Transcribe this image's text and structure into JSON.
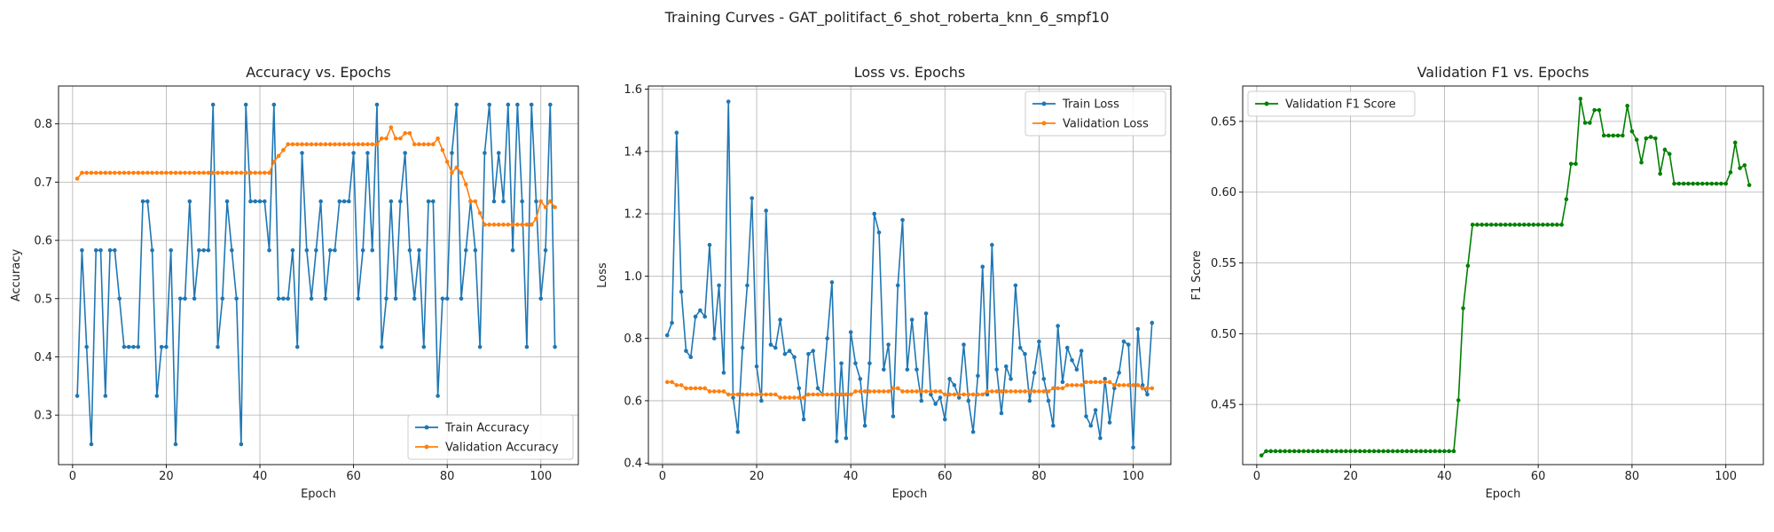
{
  "suptitle": "Training Curves - GAT_politifact_6_shot_roberta_knn_6_smpf10",
  "colors": {
    "train": "#1f77b4",
    "validation": "#ff7f0e",
    "f1": "#008000",
    "grid": "#b0b0b0",
    "axes": "#000000"
  },
  "chart_data": [
    {
      "type": "line",
      "title": "Accuracy vs. Epochs",
      "xlabel": "Epoch",
      "ylabel": "Accuracy",
      "xlim": [
        -3,
        108
      ],
      "ylim": [
        0.215,
        0.865
      ],
      "xticks": [
        0,
        20,
        40,
        60,
        80,
        100
      ],
      "yticks": [
        0.3,
        0.4,
        0.5,
        0.6,
        0.7,
        0.8
      ],
      "ytick_labels": [
        "0.3",
        "0.4",
        "0.5",
        "0.6",
        "0.7",
        "0.8"
      ],
      "grid": true,
      "legend_position": "lower-right",
      "series": [
        {
          "name": "Train Accuracy",
          "color": "#1f77b4",
          "values": [
            0.333,
            0.583,
            0.417,
            0.25,
            0.583,
            0.583,
            0.333,
            0.583,
            0.583,
            0.5,
            0.417,
            0.417,
            0.417,
            0.417,
            0.667,
            0.667,
            0.583,
            0.333,
            0.417,
            0.417,
            0.583,
            0.25,
            0.5,
            0.5,
            0.667,
            0.5,
            0.583,
            0.583,
            0.583,
            0.833,
            0.417,
            0.5,
            0.667,
            0.583,
            0.5,
            0.25,
            0.833,
            0.667,
            0.667,
            0.667,
            0.667,
            0.583,
            0.833,
            0.5,
            0.5,
            0.5,
            0.583,
            0.417,
            0.75,
            0.583,
            0.5,
            0.583,
            0.667,
            0.5,
            0.583,
            0.583,
            0.667,
            0.667,
            0.667,
            0.75,
            0.5,
            0.583,
            0.75,
            0.583,
            0.833,
            0.417,
            0.5,
            0.667,
            0.5,
            0.667,
            0.75,
            0.583,
            0.5,
            0.583,
            0.417,
            0.667,
            0.667,
            0.333,
            0.5,
            0.5,
            0.75,
            0.833,
            0.5,
            0.583,
            0.667,
            0.583,
            0.417,
            0.75,
            0.833,
            0.667,
            0.75,
            0.667,
            0.833,
            0.583,
            0.833,
            0.667,
            0.417,
            0.833,
            0.667,
            0.5,
            0.583,
            0.833,
            0.417
          ]
        },
        {
          "name": "Validation Accuracy",
          "color": "#ff7f0e",
          "values": [
            0.706,
            0.716,
            0.716,
            0.716,
            0.716,
            0.716,
            0.716,
            0.716,
            0.716,
            0.716,
            0.716,
            0.716,
            0.716,
            0.716,
            0.716,
            0.716,
            0.716,
            0.716,
            0.716,
            0.716,
            0.716,
            0.716,
            0.716,
            0.716,
            0.716,
            0.716,
            0.716,
            0.716,
            0.716,
            0.716,
            0.716,
            0.716,
            0.716,
            0.716,
            0.716,
            0.716,
            0.716,
            0.716,
            0.716,
            0.716,
            0.716,
            0.716,
            0.735,
            0.745,
            0.755,
            0.765,
            0.765,
            0.765,
            0.765,
            0.765,
            0.765,
            0.765,
            0.765,
            0.765,
            0.765,
            0.765,
            0.765,
            0.765,
            0.765,
            0.765,
            0.765,
            0.765,
            0.765,
            0.765,
            0.765,
            0.775,
            0.775,
            0.794,
            0.775,
            0.775,
            0.784,
            0.784,
            0.765,
            0.765,
            0.765,
            0.765,
            0.765,
            0.775,
            0.755,
            0.735,
            0.716,
            0.725,
            0.716,
            0.696,
            0.667,
            0.667,
            0.647,
            0.627,
            0.627,
            0.627,
            0.627,
            0.627,
            0.627,
            0.627,
            0.627,
            0.627,
            0.627,
            0.627,
            0.637,
            0.667,
            0.657,
            0.667,
            0.657
          ]
        }
      ]
    },
    {
      "type": "line",
      "title": "Loss vs. Epochs",
      "xlabel": "Epoch",
      "ylabel": "Loss",
      "xlim": [
        -3,
        108
      ],
      "ylim": [
        0.395,
        1.61
      ],
      "xticks": [
        0,
        20,
        40,
        60,
        80,
        100
      ],
      "yticks": [
        0.4,
        0.6,
        0.8,
        1.0,
        1.2,
        1.4,
        1.6
      ],
      "ytick_labels": [
        "0.4",
        "0.6",
        "0.8",
        "1.0",
        "1.2",
        "1.4",
        "1.6"
      ],
      "grid": true,
      "legend_position": "top-right",
      "series": [
        {
          "name": "Train Loss",
          "color": "#1f77b4",
          "values": [
            0.81,
            0.85,
            1.46,
            0.95,
            0.76,
            0.74,
            0.87,
            0.89,
            0.87,
            1.1,
            0.8,
            0.97,
            0.69,
            1.56,
            0.61,
            0.5,
            0.77,
            0.97,
            1.25,
            0.71,
            0.6,
            1.21,
            0.78,
            0.77,
            0.86,
            0.75,
            0.76,
            0.74,
            0.64,
            0.54,
            0.75,
            0.76,
            0.64,
            0.62,
            0.8,
            0.98,
            0.47,
            0.72,
            0.48,
            0.82,
            0.72,
            0.67,
            0.52,
            0.72,
            1.2,
            1.14,
            0.7,
            0.78,
            0.55,
            0.97,
            1.18,
            0.7,
            0.86,
            0.7,
            0.6,
            0.88,
            0.62,
            0.59,
            0.61,
            0.54,
            0.67,
            0.65,
            0.61,
            0.78,
            0.6,
            0.5,
            0.68,
            1.03,
            0.62,
            1.1,
            0.7,
            0.56,
            0.71,
            0.67,
            0.97,
            0.77,
            0.75,
            0.6,
            0.69,
            0.79,
            0.67,
            0.6,
            0.52,
            0.84,
            0.66,
            0.77,
            0.73,
            0.7,
            0.76,
            0.55,
            0.52,
            0.57,
            0.48,
            0.67,
            0.53,
            0.64,
            0.69,
            0.79,
            0.78,
            0.45,
            0.83,
            0.65,
            0.62,
            0.85
          ]
        },
        {
          "name": "Validation Loss",
          "color": "#ff7f0e",
          "values": [
            0.66,
            0.66,
            0.65,
            0.65,
            0.64,
            0.64,
            0.64,
            0.64,
            0.64,
            0.63,
            0.63,
            0.63,
            0.63,
            0.62,
            0.62,
            0.62,
            0.62,
            0.62,
            0.62,
            0.62,
            0.62,
            0.62,
            0.62,
            0.62,
            0.61,
            0.61,
            0.61,
            0.61,
            0.61,
            0.61,
            0.62,
            0.62,
            0.62,
            0.62,
            0.62,
            0.62,
            0.62,
            0.62,
            0.62,
            0.62,
            0.63,
            0.63,
            0.63,
            0.63,
            0.63,
            0.63,
            0.63,
            0.63,
            0.64,
            0.64,
            0.63,
            0.63,
            0.63,
            0.63,
            0.63,
            0.63,
            0.63,
            0.63,
            0.63,
            0.62,
            0.62,
            0.62,
            0.62,
            0.62,
            0.62,
            0.62,
            0.62,
            0.62,
            0.63,
            0.63,
            0.63,
            0.63,
            0.63,
            0.63,
            0.63,
            0.63,
            0.63,
            0.63,
            0.63,
            0.63,
            0.63,
            0.63,
            0.64,
            0.64,
            0.64,
            0.65,
            0.65,
            0.65,
            0.65,
            0.66,
            0.66,
            0.66,
            0.66,
            0.66,
            0.66,
            0.65,
            0.65,
            0.65,
            0.65,
            0.65,
            0.65,
            0.64,
            0.64,
            0.64
          ]
        }
      ]
    },
    {
      "type": "line",
      "title": "Validation F1 vs. Epochs",
      "xlabel": "Epoch",
      "ylabel": "F1 Score",
      "xlim": [
        -3,
        108
      ],
      "ylim": [
        0.4075,
        0.675
      ],
      "xticks": [
        0,
        20,
        40,
        60,
        80,
        100
      ],
      "yticks": [
        0.45,
        0.5,
        0.55,
        0.6,
        0.65
      ],
      "ytick_labels": [
        "0.45",
        "0.50",
        "0.55",
        "0.60",
        "0.65"
      ],
      "grid": true,
      "legend_position": "top-left",
      "series": [
        {
          "name": "Validation F1 Score",
          "color": "#008000",
          "values": [
            0.414,
            0.417,
            0.417,
            0.417,
            0.417,
            0.417,
            0.417,
            0.417,
            0.417,
            0.417,
            0.417,
            0.417,
            0.417,
            0.417,
            0.417,
            0.417,
            0.417,
            0.417,
            0.417,
            0.417,
            0.417,
            0.417,
            0.417,
            0.417,
            0.417,
            0.417,
            0.417,
            0.417,
            0.417,
            0.417,
            0.417,
            0.417,
            0.417,
            0.417,
            0.417,
            0.417,
            0.417,
            0.417,
            0.417,
            0.417,
            0.417,
            0.417,
            0.453,
            0.518,
            0.548,
            0.577,
            0.577,
            0.577,
            0.577,
            0.577,
            0.577,
            0.577,
            0.577,
            0.577,
            0.577,
            0.577,
            0.577,
            0.577,
            0.577,
            0.577,
            0.577,
            0.577,
            0.577,
            0.577,
            0.577,
            0.595,
            0.62,
            0.62,
            0.666,
            0.649,
            0.649,
            0.658,
            0.658,
            0.64,
            0.64,
            0.64,
            0.64,
            0.64,
            0.661,
            0.643,
            0.637,
            0.621,
            0.638,
            0.639,
            0.638,
            0.613,
            0.63,
            0.627,
            0.606,
            0.606,
            0.606,
            0.606,
            0.606,
            0.606,
            0.606,
            0.606,
            0.606,
            0.606,
            0.606,
            0.606,
            0.614,
            0.635,
            0.617,
            0.619,
            0.605
          ]
        }
      ]
    }
  ]
}
